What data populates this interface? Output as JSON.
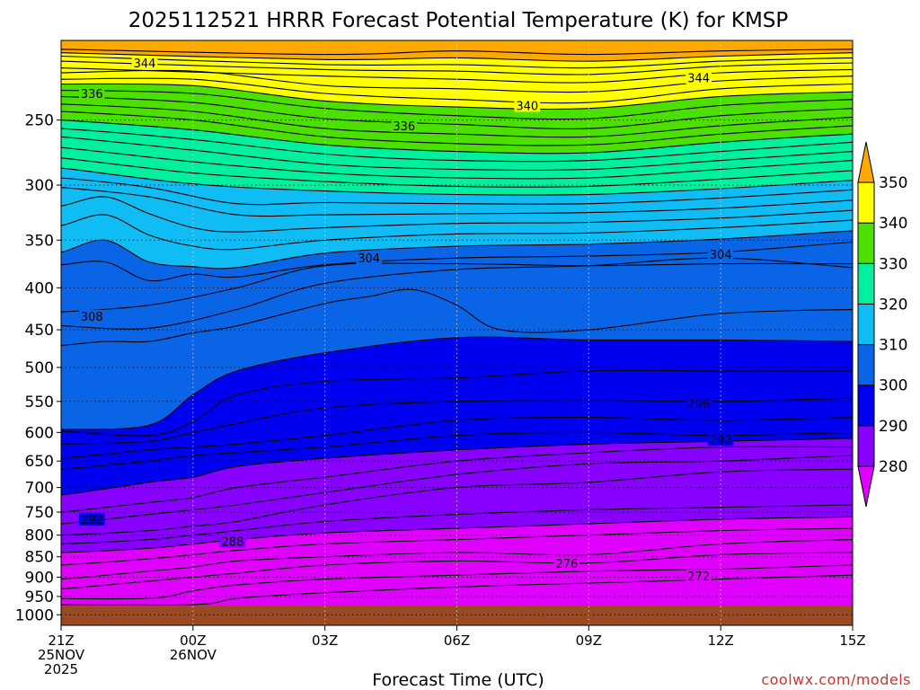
{
  "chart_data": {
    "type": "contour",
    "title": "2025112521 HRRR Forecast Potential Temperature (K) for KMSP",
    "xlabel": "Forecast Time (UTC)",
    "ylabel": "",
    "credit": "coolwx.com/models",
    "x_ticks": [
      {
        "hour": 0,
        "lines": [
          "21Z",
          "25NOV",
          "2025"
        ]
      },
      {
        "hour": 3,
        "lines": [
          "00Z",
          "26NOV"
        ]
      },
      {
        "hour": 6,
        "lines": [
          "03Z"
        ]
      },
      {
        "hour": 9,
        "lines": [
          "06Z"
        ]
      },
      {
        "hour": 12,
        "lines": [
          "09Z"
        ]
      },
      {
        "hour": 15,
        "lines": [
          "12Z"
        ]
      },
      {
        "hour": 18,
        "lines": [
          "15Z"
        ]
      }
    ],
    "xlim": [
      0,
      18
    ],
    "y_ticks": [
      250,
      300,
      350,
      400,
      450,
      500,
      550,
      600,
      650,
      700,
      750,
      800,
      850,
      900,
      950,
      1000
    ],
    "ylim_hPa": [
      200,
      1030
    ],
    "y_scale": "log",
    "surface_hPa": 975,
    "colorbar": {
      "ticks": [
        280,
        290,
        300,
        310,
        320,
        330,
        340,
        350
      ],
      "bins": [
        {
          "from": 270,
          "to": 280,
          "color": "#e000ff"
        },
        {
          "from": 280,
          "to": 290,
          "color": "#8800ff"
        },
        {
          "from": 290,
          "to": 300,
          "color": "#0000f0"
        },
        {
          "from": 300,
          "to": 310,
          "color": "#0a64e6"
        },
        {
          "from": 310,
          "to": 320,
          "color": "#10bcf4"
        },
        {
          "from": 320,
          "to": 330,
          "color": "#00f0a0"
        },
        {
          "from": 330,
          "to": 340,
          "color": "#4ce000"
        },
        {
          "from": 340,
          "to": 350,
          "color": "#ffff00"
        },
        {
          "from": 350,
          "to": 360,
          "color": "#ffa800"
        }
      ],
      "surface_color": "#9a4a22"
    },
    "contour_interval_K": 2,
    "contour_labels": [
      {
        "value": "344",
        "hour": 1.9,
        "hPa": 213
      },
      {
        "value": "336",
        "hour": 0.7,
        "hPa": 232
      },
      {
        "value": "340",
        "hour": 10.6,
        "hPa": 240
      },
      {
        "value": "344",
        "hour": 14.5,
        "hPa": 222
      },
      {
        "value": "336",
        "hour": 7.8,
        "hPa": 254
      },
      {
        "value": "304",
        "hour": 7.0,
        "hPa": 368
      },
      {
        "value": "304",
        "hour": 15.0,
        "hPa": 364
      },
      {
        "value": "308",
        "hour": 0.7,
        "hPa": 433
      },
      {
        "value": "296",
        "hour": 14.5,
        "hPa": 553
      },
      {
        "value": "292",
        "hour": 15.0,
        "hPa": 612
      },
      {
        "value": "292",
        "hour": 0.7,
        "hPa": 765
      },
      {
        "value": "288",
        "hour": 3.9,
        "hPa": 814
      },
      {
        "value": "276",
        "hour": 11.5,
        "hPa": 866
      },
      {
        "value": "272",
        "hour": 14.5,
        "hPa": 897
      }
    ],
    "isentropes": [
      {
        "theta": 352,
        "h": [
          0,
          6,
          9,
          12,
          15,
          18
        ],
        "p": [
          205,
          208,
          206,
          208,
          206,
          205
        ]
      },
      {
        "theta": 350,
        "h": [
          0,
          6,
          9,
          12,
          15,
          18
        ],
        "p": [
          207,
          211,
          210,
          212,
          209,
          207
        ]
      },
      {
        "theta": 349,
        "h": [
          0,
          6,
          9,
          12,
          15,
          18
        ],
        "p": [
          209,
          214,
          214,
          216,
          212,
          210
        ]
      },
      {
        "theta": 348,
        "h": [
          0,
          6,
          9,
          12,
          15,
          18
        ],
        "p": [
          212,
          217,
          218,
          220,
          215,
          213
        ]
      },
      {
        "theta": 346,
        "h": [
          0,
          6,
          9,
          12,
          15,
          18
        ],
        "p": [
          216,
          221,
          223,
          225,
          219,
          217
        ]
      },
      {
        "theta": 344,
        "h": [
          0,
          3,
          6,
          9,
          12,
          15,
          18
        ],
        "p": [
          219,
          218,
          227,
          229,
          231,
          224,
          221
        ]
      },
      {
        "theta": 342,
        "h": [
          0,
          3,
          6,
          9,
          12,
          15,
          18
        ],
        "p": [
          223,
          223,
          232,
          236,
          238,
          229,
          226
        ]
      },
      {
        "theta": 340,
        "h": [
          0,
          3,
          6,
          9,
          12,
          15,
          18
        ],
        "p": [
          226,
          227,
          237,
          241,
          242,
          234,
          231
        ]
      },
      {
        "theta": 338,
        "h": [
          0,
          3,
          6,
          9,
          12,
          15,
          18
        ],
        "p": [
          230,
          232,
          242,
          247,
          249,
          240,
          236
        ]
      },
      {
        "theta": 336,
        "h": [
          0,
          3,
          6,
          9,
          12,
          15,
          18
        ],
        "p": [
          234,
          238,
          249,
          253,
          256,
          247,
          242
        ]
      },
      {
        "theta": 334,
        "h": [
          0,
          3,
          6,
          9,
          12,
          15,
          18
        ],
        "p": [
          239,
          244,
          256,
          260,
          262,
          254,
          248
        ]
      },
      {
        "theta": 332,
        "h": [
          0,
          3,
          6,
          9,
          12,
          15,
          18
        ],
        "p": [
          244,
          250,
          262,
          267,
          268,
          260,
          254
        ]
      },
      {
        "theta": 330,
        "h": [
          0,
          3,
          6,
          9,
          12,
          15,
          18
        ],
        "p": [
          250,
          257,
          268,
          273,
          274,
          266,
          260
        ]
      },
      {
        "theta": 328,
        "h": [
          0,
          3,
          6,
          9,
          12,
          15,
          18
        ],
        "p": [
          256,
          264,
          275,
          280,
          280,
          273,
          266
        ]
      },
      {
        "theta": 326,
        "h": [
          0,
          3,
          6,
          9,
          12,
          15,
          18
        ],
        "p": [
          262,
          272,
          283,
          287,
          287,
          280,
          273
        ]
      },
      {
        "theta": 324,
        "h": [
          0,
          3,
          6,
          9,
          12,
          15,
          18
        ],
        "p": [
          270,
          281,
          290,
          294,
          294,
          287,
          280
        ]
      },
      {
        "theta": 322,
        "h": [
          0,
          3,
          6,
          9,
          12,
          15,
          18
        ],
        "p": [
          278,
          290,
          297,
          301,
          301,
          295,
          288
        ]
      },
      {
        "theta": 320,
        "h": [
          0,
          3,
          6,
          9,
          12,
          15,
          18
        ],
        "p": [
          286,
          299,
          305,
          308,
          308,
          303,
          296
        ]
      },
      {
        "theta": 318,
        "h": [
          0,
          2,
          4,
          6,
          9,
          12,
          15,
          18
        ],
        "p": [
          294,
          302,
          316,
          315,
          316,
          316,
          311,
          304
        ]
      },
      {
        "theta": 316,
        "h": [
          0,
          2,
          4,
          6,
          9,
          12,
          15,
          18
        ],
        "p": [
          302,
          310,
          326,
          326,
          325,
          324,
          320,
          313
        ]
      },
      {
        "theta": 314,
        "h": [
          0,
          1,
          2,
          3,
          4,
          6,
          9,
          12,
          15,
          18
        ],
        "p": [
          318,
          310,
          325,
          338,
          342,
          338,
          334,
          333,
          329,
          322
        ]
      },
      {
        "theta": 312,
        "h": [
          0,
          1,
          2,
          3,
          4,
          6,
          9,
          12,
          15,
          18
        ],
        "p": [
          336,
          326,
          345,
          356,
          359,
          350,
          344,
          343,
          338,
          331
        ]
      },
      {
        "theta": 310,
        "h": [
          0,
          1,
          2,
          3,
          4,
          6,
          9,
          12,
          15,
          18
        ],
        "p": [
          362,
          350,
          372,
          377,
          378,
          363,
          356,
          354,
          349,
          341
        ]
      },
      {
        "theta": 308,
        "h": [
          0,
          1,
          2,
          3,
          4,
          6,
          9,
          12,
          15,
          18
        ],
        "p": [
          375,
          372,
          392,
          385,
          388,
          375,
          368,
          366,
          362,
          352
        ]
      },
      {
        "theta": 306,
        "h": [
          0,
          2,
          4,
          6,
          9,
          12,
          15,
          18
        ],
        "p": [
          428,
          420,
          400,
          376,
          374,
          376,
          374,
          374
        ]
      },
      {
        "theta": 304,
        "h": [
          0,
          2,
          4,
          6,
          9,
          12,
          15,
          18
        ],
        "p": [
          445,
          448,
          425,
          395,
          380,
          376,
          368,
          378
        ]
      },
      {
        "theta": 302,
        "h": [
          0,
          1,
          2,
          3,
          4,
          6,
          7,
          8,
          9,
          10,
          12,
          15,
          18
        ],
        "p": [
          470,
          465,
          465,
          454,
          445,
          418,
          410,
          402,
          420,
          450,
          450,
          430,
          425
        ]
      },
      {
        "theta": 300,
        "h": [
          0,
          2,
          3,
          4,
          6,
          9,
          12,
          15,
          18
        ],
        "p": [
          595,
          588,
          540,
          505,
          480,
          460,
          463,
          463,
          465
        ]
      },
      {
        "theta": 298,
        "h": [
          0,
          2,
          3,
          4,
          6,
          9,
          12,
          15,
          18
        ],
        "p": [
          598,
          605,
          582,
          540,
          520,
          515,
          505,
          505,
          505
        ]
      },
      {
        "theta": 296,
        "h": [
          0,
          2,
          3,
          4,
          6,
          9,
          12,
          15,
          18
        ],
        "p": [
          620,
          615,
          600,
          585,
          560,
          550,
          548,
          550,
          545
        ]
      },
      {
        "theta": 294,
        "h": [
          0,
          2,
          3,
          4,
          6,
          9,
          12,
          15,
          18
        ],
        "p": [
          645,
          630,
          625,
          620,
          605,
          580,
          575,
          580,
          575
        ]
      },
      {
        "theta": 292,
        "h": [
          0,
          2,
          3,
          4,
          6,
          9,
          12,
          15,
          18
        ],
        "p": [
          665,
          650,
          640,
          635,
          625,
          605,
          600,
          605,
          600
        ]
      },
      {
        "theta": 290,
        "h": [
          0,
          2,
          3,
          4,
          6,
          9,
          12,
          15,
          18
        ],
        "p": [
          715,
          690,
          680,
          660,
          645,
          630,
          620,
          615,
          610
        ]
      },
      {
        "theta": 288,
        "h": [
          0,
          2,
          3,
          4,
          6,
          9,
          12,
          15,
          18
        ],
        "p": [
          750,
          730,
          720,
          700,
          680,
          650,
          635,
          625,
          625
        ]
      },
      {
        "theta": 286,
        "h": [
          0,
          2,
          3,
          4,
          6,
          9,
          12,
          15,
          18
        ],
        "p": [
          775,
          755,
          745,
          735,
          710,
          675,
          655,
          650,
          640
        ]
      },
      {
        "theta": 284,
        "h": [
          0,
          2,
          3,
          4,
          6,
          9,
          12,
          15,
          18
        ],
        "p": [
          800,
          790,
          780,
          770,
          735,
          700,
          690,
          670,
          665
        ]
      },
      {
        "theta": 282,
        "h": [
          0,
          2,
          3,
          4,
          6,
          9,
          12,
          15,
          18
        ],
        "p": [
          820,
          810,
          800,
          790,
          770,
          755,
          745,
          740,
          735
        ]
      },
      {
        "theta": 280,
        "h": [
          0,
          2,
          3,
          4,
          6,
          9,
          12,
          15,
          18
        ],
        "p": [
          840,
          830,
          820,
          810,
          795,
          785,
          775,
          765,
          760
        ]
      },
      {
        "theta": 278,
        "h": [
          0,
          2,
          3,
          4,
          6,
          9,
          12,
          15,
          18
        ],
        "p": [
          870,
          855,
          845,
          835,
          820,
          810,
          800,
          790,
          785
        ]
      },
      {
        "theta": 276,
        "h": [
          0,
          2,
          3,
          4,
          6,
          9,
          12,
          15,
          18
        ],
        "p": [
          905,
          885,
          875,
          860,
          850,
          840,
          845,
          820,
          810
        ]
      },
      {
        "theta": 274,
        "h": [
          0,
          2,
          3,
          4,
          6,
          9,
          12,
          15,
          18
        ],
        "p": [
          930,
          910,
          900,
          890,
          870,
          860,
          865,
          845,
          840
        ]
      },
      {
        "theta": 272,
        "h": [
          2,
          3,
          4,
          6,
          9,
          12,
          15,
          18
        ],
        "p": [
          955,
          935,
          920,
          905,
          895,
          885,
          880,
          870
        ]
      },
      {
        "theta": 270,
        "h": [
          3,
          4,
          6,
          9,
          12,
          15,
          18
        ],
        "p": [
          972,
          955,
          940,
          925,
          915,
          905,
          895
        ]
      }
    ]
  }
}
